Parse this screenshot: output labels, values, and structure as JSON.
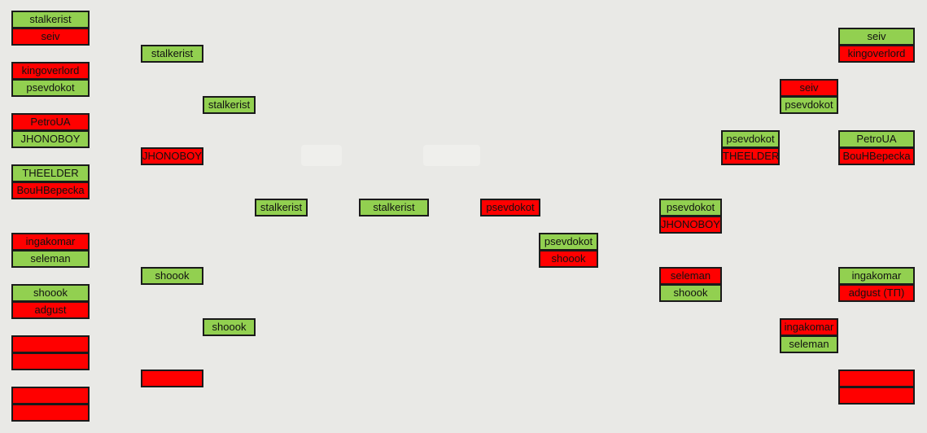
{
  "bracket": {
    "colors": {
      "winner": "#92d050",
      "loser": "#ff0000"
    },
    "left_round1": [
      [
        "stalkerist",
        "seiv"
      ],
      [
        "kingoverlord",
        "psevdokot"
      ],
      [
        "PetroUA",
        "JHONOBOY"
      ],
      [
        "THEELDER",
        "BouHBepecka"
      ],
      [
        "ingakomar",
        "seleman"
      ],
      [
        "shoook",
        "adgust"
      ],
      [
        "",
        ""
      ],
      [
        "",
        ""
      ]
    ],
    "left_round2": [
      "stalkerist",
      "JHONOBOY",
      "shoook",
      ""
    ],
    "left_round3": [
      "stalkerist",
      "shoook"
    ],
    "left_round4": "stalkerist",
    "final": {
      "left": "stalkerist",
      "right": "psevdokot"
    },
    "right_final_pair": [
      "psevdokot",
      "shoook"
    ],
    "right_round3": [
      [
        "psevdokot",
        "JHONOBOY"
      ],
      [
        "seleman",
        "shoook"
      ]
    ],
    "right_round2": [
      [
        "psevdokot",
        "THEELDER"
      ],
      [
        "ingakomar",
        "seleman"
      ]
    ],
    "right_round1b": [
      "seiv",
      "psevdokot"
    ],
    "right_round1": [
      [
        "seiv",
        "kingoverlord"
      ],
      [
        "PetroUA",
        "BouHBepecka"
      ],
      [
        "ingakomar",
        "adgust (TП)"
      ],
      [
        "",
        ""
      ]
    ]
  }
}
